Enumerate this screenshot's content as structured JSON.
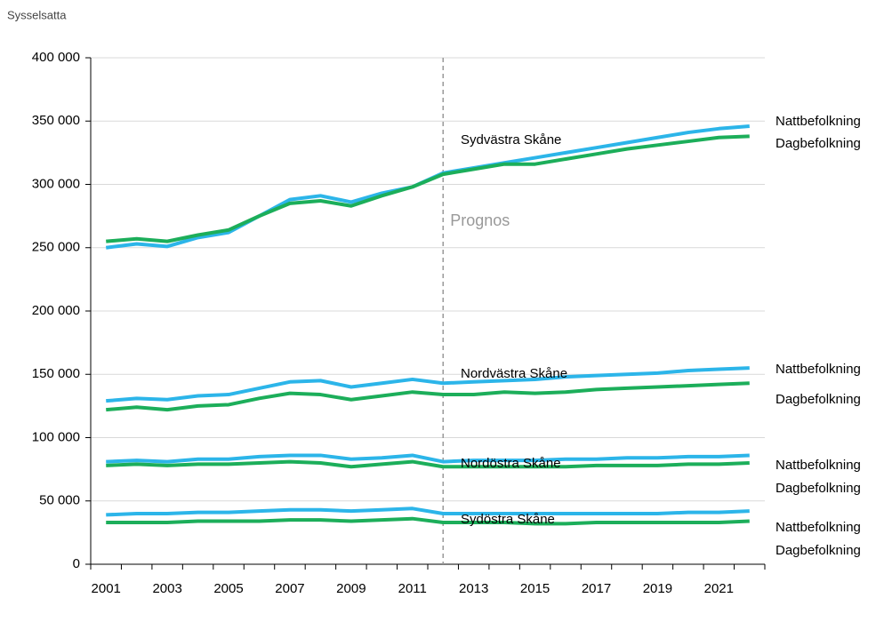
{
  "chart_data": {
    "type": "line",
    "y_axis_title": "Sysselsatta",
    "x": [
      2001,
      2002,
      2003,
      2004,
      2005,
      2006,
      2007,
      2008,
      2009,
      2010,
      2011,
      2012,
      2013,
      2014,
      2015,
      2016,
      2017,
      2018,
      2019,
      2020,
      2021,
      2022
    ],
    "xlim": [
      2000.5,
      2022.5
    ],
    "xticks": [
      2001,
      2003,
      2005,
      2007,
      2009,
      2011,
      2013,
      2015,
      2017,
      2019,
      2021
    ],
    "ylim": [
      0,
      400000
    ],
    "yticks": [
      0,
      {
        "value": 50000,
        "label": "50 000"
      },
      {
        "value": 100000,
        "label": "100 000"
      },
      {
        "value": 150000,
        "label": "150 000"
      },
      {
        "value": 200000,
        "label": "200 000"
      },
      {
        "value": 250000,
        "label": "250 000"
      },
      {
        "value": 300000,
        "label": "300 000"
      },
      {
        "value": 350000,
        "label": "350 000"
      },
      {
        "value": 400000,
        "label": "400 000"
      }
    ],
    "grid": true,
    "forecast_start": 2012,
    "forecast_label": "Prognos",
    "annotations": [
      "Sydvästra Skåne",
      "Nordvästra Skåne",
      "Nordöstra Skåne",
      "Sydöstra Skåne"
    ],
    "series": [
      {
        "name": "Nattbefolkning",
        "color": "#2cb5e9",
        "values": [
          250000,
          253000,
          251000,
          258000,
          262000,
          275000,
          288000,
          291000,
          286000,
          293000,
          298000,
          309000,
          313000,
          317000,
          321000,
          325000,
          329000,
          333000,
          337000,
          341000,
          344000,
          346000
        ]
      },
      {
        "name": "Dagbefolkning",
        "color": "#1cae5a",
        "values": [
          255000,
          257000,
          255000,
          260000,
          264000,
          275000,
          285000,
          287000,
          283000,
          291000,
          298000,
          308000,
          312000,
          316000,
          316000,
          320000,
          324000,
          328000,
          331000,
          334000,
          337000,
          338000
        ]
      },
      {
        "name": "Nattbefolkning",
        "color": "#2cb5e9",
        "values": [
          129000,
          131000,
          130000,
          133000,
          134000,
          139000,
          144000,
          145000,
          140000,
          143000,
          146000,
          143000,
          144000,
          145000,
          146000,
          148000,
          149000,
          150000,
          151000,
          153000,
          154000,
          155000
        ]
      },
      {
        "name": "Dagbefolkning",
        "color": "#1cae5a",
        "values": [
          122000,
          124000,
          122000,
          125000,
          126000,
          131000,
          135000,
          134000,
          130000,
          133000,
          136000,
          134000,
          134000,
          136000,
          135000,
          136000,
          138000,
          139000,
          140000,
          141000,
          142000,
          143000
        ]
      },
      {
        "name": "Nattbefolkning",
        "color": "#2cb5e9",
        "values": [
          81000,
          82000,
          81000,
          83000,
          83000,
          85000,
          86000,
          86000,
          83000,
          84000,
          86000,
          81000,
          82000,
          82000,
          82000,
          83000,
          83000,
          84000,
          84000,
          85000,
          85000,
          86000
        ]
      },
      {
        "name": "Dagbefolkning",
        "color": "#1cae5a",
        "values": [
          78000,
          79000,
          78000,
          79000,
          79000,
          80000,
          81000,
          80000,
          77000,
          79000,
          81000,
          77000,
          77000,
          77000,
          77000,
          77000,
          78000,
          78000,
          78000,
          79000,
          79000,
          80000
        ]
      },
      {
        "name": "Nattbefolkning",
        "color": "#2cb5e9",
        "values": [
          39000,
          40000,
          40000,
          41000,
          41000,
          42000,
          43000,
          43000,
          42000,
          43000,
          44000,
          40000,
          40000,
          40000,
          40000,
          40000,
          40000,
          40000,
          40000,
          41000,
          41000,
          42000
        ]
      },
      {
        "name": "Dagbefolkning",
        "color": "#1cae5a",
        "values": [
          33000,
          33000,
          33000,
          34000,
          34000,
          34000,
          35000,
          35000,
          34000,
          35000,
          36000,
          33000,
          33000,
          33000,
          32000,
          32000,
          33000,
          33000,
          33000,
          33000,
          33000,
          34000
        ]
      }
    ]
  }
}
